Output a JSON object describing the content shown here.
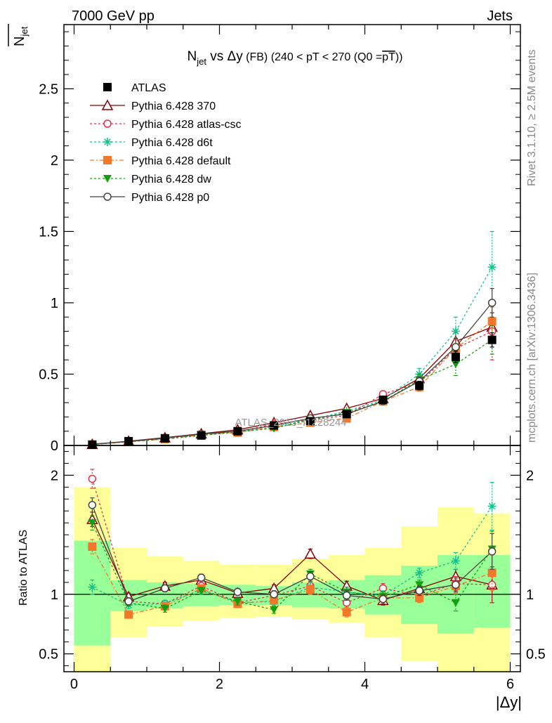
{
  "header": {
    "left": "7000 GeV pp",
    "right": "Jets",
    "watermark": "ATLAS_2013_I1228244",
    "side_label_top": "Rivet 3.1.10, ≥ 2.5M events",
    "side_label_bottom": "mcplots.cern.ch [arXiv:1306.3436]"
  },
  "chart_data": [
    {
      "type": "line",
      "title": "N_jet vs Δy (FB) (240 < pT < 270 (Q0 = avg pT))",
      "title_parts": {
        "main": "N",
        "sub": "jet",
        "vs": " vs Δy",
        "extra": " (FB) (240 < pT < 270 (Q0 =",
        "overline": "pT",
        "end": "))"
      },
      "ylabel": "N_jet (mean)",
      "ylabel_parts": {
        "main": "N",
        "sub": "jet"
      },
      "xlabel": "",
      "xlim": [
        -0.14,
        6.14
      ],
      "ylim": [
        0,
        2.95
      ],
      "yticks": [
        0,
        0.5,
        1,
        1.5,
        2,
        2.5
      ],
      "ytick_labels": [
        "0",
        "0.5",
        "1",
        "1.5",
        "2",
        "2.5"
      ],
      "grid": false,
      "legend_position": "top-left",
      "x": [
        0.25,
        0.75,
        1.25,
        1.75,
        2.25,
        2.75,
        3.25,
        3.75,
        4.25,
        4.75,
        5.25,
        5.75
      ],
      "series": [
        {
          "name": "ATLAS",
          "color": "#000000",
          "marker": "square-filled",
          "dash": "none",
          "values": [
            0.005,
            0.03,
            0.05,
            0.07,
            0.1,
            0.14,
            0.17,
            0.22,
            0.32,
            0.42,
            0.62,
            0.74
          ],
          "errors": [
            0.002,
            0.004,
            0.005,
            0.006,
            0.008,
            0.01,
            0.01,
            0.015,
            0.02,
            0.03,
            0.04,
            0.05
          ]
        },
        {
          "name": "Pythia 6.428 370",
          "color": "#8b0000",
          "marker": "triangle-open",
          "dash": "none",
          "values": [
            0.008,
            0.03,
            0.055,
            0.082,
            0.11,
            0.16,
            0.21,
            0.26,
            0.33,
            0.47,
            0.73,
            0.83
          ],
          "errors": [
            0.001,
            0.002,
            0.003,
            0.004,
            0.005,
            0.006,
            0.008,
            0.01,
            0.015,
            0.03,
            0.06,
            0.1
          ]
        },
        {
          "name": "Pythia 6.428 atlas-csc",
          "color": "#e0304a",
          "marker": "circle-open",
          "dash": "3,3",
          "values": [
            0.01,
            0.028,
            0.05,
            0.075,
            0.095,
            0.15,
            0.18,
            0.21,
            0.36,
            0.44,
            0.68,
            0.8
          ],
          "errors": [
            0.001,
            0.002,
            0.003,
            0.004,
            0.005,
            0.006,
            0.008,
            0.01,
            0.015,
            0.03,
            0.06,
            0.2
          ]
        },
        {
          "name": "Pythia 6.428 d6t",
          "color": "#14c08c",
          "marker": "star",
          "dash": "3,3",
          "values": [
            0.006,
            0.025,
            0.05,
            0.075,
            0.095,
            0.13,
            0.18,
            0.24,
            0.32,
            0.5,
            0.8,
            1.25
          ],
          "errors": [
            0.001,
            0.002,
            0.003,
            0.004,
            0.005,
            0.006,
            0.008,
            0.01,
            0.015,
            0.04,
            0.1,
            0.25
          ]
        },
        {
          "name": "Pythia 6.428 default",
          "color": "#f07828",
          "marker": "square-filled",
          "dash": "6,3,2,3",
          "values": [
            0.007,
            0.025,
            0.045,
            0.075,
            0.09,
            0.13,
            0.16,
            0.19,
            0.31,
            0.41,
            0.68,
            0.87
          ],
          "errors": [
            0.001,
            0.002,
            0.003,
            0.004,
            0.005,
            0.006,
            0.008,
            0.01,
            0.015,
            0.03,
            0.06,
            0.1
          ]
        },
        {
          "name": "Pythia 6.428 dw",
          "color": "#10a010",
          "marker": "triangle-down-filled",
          "dash": "3,3",
          "values": [
            0.008,
            0.028,
            0.045,
            0.07,
            0.095,
            0.12,
            0.18,
            0.23,
            0.31,
            0.46,
            0.57,
            0.74
          ],
          "errors": [
            0.001,
            0.002,
            0.003,
            0.004,
            0.005,
            0.006,
            0.008,
            0.01,
            0.015,
            0.04,
            0.08,
            0.1
          ]
        },
        {
          "name": "Pythia 6.428 p0",
          "color": "#444444",
          "marker": "circle-open",
          "dash": "none",
          "values": [
            0.009,
            0.028,
            0.052,
            0.08,
            0.1,
            0.14,
            0.19,
            0.22,
            0.31,
            0.45,
            0.69,
            1.0
          ],
          "errors": [
            0.001,
            0.002,
            0.003,
            0.004,
            0.005,
            0.006,
            0.008,
            0.01,
            0.015,
            0.03,
            0.06,
            0.1
          ]
        }
      ]
    },
    {
      "type": "line",
      "ylabel": "Ratio to ATLAS",
      "xlabel": "|Δy|",
      "xlim": [
        -0.14,
        6.14
      ],
      "ylim": [
        0.35,
        2.25
      ],
      "xticks": [
        0,
        2,
        4,
        6
      ],
      "xtick_labels": [
        "0",
        "2",
        "4",
        "6"
      ],
      "yticks": [
        0.5,
        1,
        2
      ],
      "ytick_labels": [
        "0.5",
        "1",
        "2"
      ],
      "reference_line": 1,
      "bands": {
        "edges": [
          0,
          0.5,
          1,
          1.5,
          2,
          2.5,
          3,
          3.5,
          4,
          4.5,
          5,
          5.5,
          6
        ],
        "green": [
          [
            0.57,
            1.45
          ],
          [
            0.86,
            1.12
          ],
          [
            0.88,
            1.1
          ],
          [
            0.9,
            1.09
          ],
          [
            0.91,
            1.08
          ],
          [
            0.91,
            1.07
          ],
          [
            0.89,
            1.1
          ],
          [
            0.88,
            1.12
          ],
          [
            0.83,
            1.16
          ],
          [
            0.75,
            1.24
          ],
          [
            0.67,
            1.33
          ],
          [
            0.72,
            1.33
          ]
        ],
        "yellow": [
          [
            0.35,
            1.9
          ],
          [
            0.64,
            1.39
          ],
          [
            0.73,
            1.32
          ],
          [
            0.78,
            1.28
          ],
          [
            0.8,
            1.25
          ],
          [
            0.81,
            1.25
          ],
          [
            0.79,
            1.3
          ],
          [
            0.76,
            1.33
          ],
          [
            0.64,
            1.39
          ],
          [
            0.44,
            1.57
          ],
          [
            0.35,
            1.73
          ],
          [
            0.35,
            1.68
          ]
        ]
      },
      "x": [
        0.25,
        0.75,
        1.25,
        1.75,
        2.25,
        2.75,
        3.25,
        3.75,
        4.25,
        4.75,
        5.25,
        5.75
      ],
      "series": [
        {
          "name": "Pythia 6.428 370",
          "color": "#8b0000",
          "marker": "triangle-open",
          "dash": "none",
          "values": [
            1.63,
            0.98,
            1.07,
            1.12,
            1.01,
            1.05,
            1.34,
            1.07,
            0.95,
            1.05,
            1.15,
            1.08
          ],
          "errors": [
            0.06,
            0.03,
            0.03,
            0.03,
            0.03,
            0.03,
            0.04,
            0.04,
            0.04,
            0.04,
            0.06,
            0.15
          ]
        },
        {
          "name": "Pythia 6.428 atlas-csc",
          "color": "#e0304a",
          "marker": "circle-open",
          "dash": "3,3",
          "values": [
            1.97,
            0.94,
            0.92,
            1.07,
            0.93,
            0.99,
            1.07,
            0.93,
            1.05,
            0.99,
            1.09,
            1.08
          ],
          "errors": [
            0.08,
            0.03,
            0.03,
            0.03,
            0.03,
            0.03,
            0.04,
            0.04,
            0.04,
            0.04,
            0.06,
            0.15
          ]
        },
        {
          "name": "Pythia 6.428 d6t",
          "color": "#14c08c",
          "marker": "star",
          "dash": "3,3",
          "values": [
            1.06,
            0.91,
            0.92,
            1.04,
            0.93,
            0.94,
            1.06,
            1.02,
            0.99,
            1.18,
            1.28,
            1.74
          ],
          "errors": [
            0.06,
            0.03,
            0.03,
            0.03,
            0.03,
            0.03,
            0.04,
            0.04,
            0.04,
            0.04,
            0.07,
            0.2
          ]
        },
        {
          "name": "Pythia 6.428 default",
          "color": "#f07828",
          "marker": "square-filled",
          "dash": "6,3,2,3",
          "values": [
            1.4,
            0.83,
            0.9,
            1.05,
            0.92,
            0.95,
            1.04,
            0.85,
            0.97,
            0.97,
            1.07,
            1.18
          ],
          "errors": [
            0.06,
            0.03,
            0.03,
            0.03,
            0.03,
            0.03,
            0.04,
            0.04,
            0.04,
            0.04,
            0.06,
            0.15
          ]
        },
        {
          "name": "Pythia 6.428 dw",
          "color": "#10a010",
          "marker": "triangle-down-filled",
          "dash": "3,3",
          "values": [
            1.6,
            0.93,
            0.88,
            1.03,
            0.94,
            0.87,
            1.17,
            1.02,
            0.98,
            1.08,
            0.93,
            1.38
          ],
          "errors": [
            0.06,
            0.03,
            0.03,
            0.03,
            0.03,
            0.03,
            0.04,
            0.04,
            0.04,
            0.04,
            0.07,
            0.15
          ]
        },
        {
          "name": "Pythia 6.428 p0",
          "color": "#444444",
          "marker": "circle-open",
          "dash": "none",
          "values": [
            1.75,
            0.94,
            1.05,
            1.14,
            1.02,
            1.0,
            1.15,
            0.99,
            0.96,
            1.03,
            1.08,
            1.36
          ],
          "errors": [
            0.06,
            0.03,
            0.03,
            0.03,
            0.03,
            0.03,
            0.04,
            0.04,
            0.04,
            0.04,
            0.06,
            0.15
          ]
        }
      ]
    }
  ]
}
